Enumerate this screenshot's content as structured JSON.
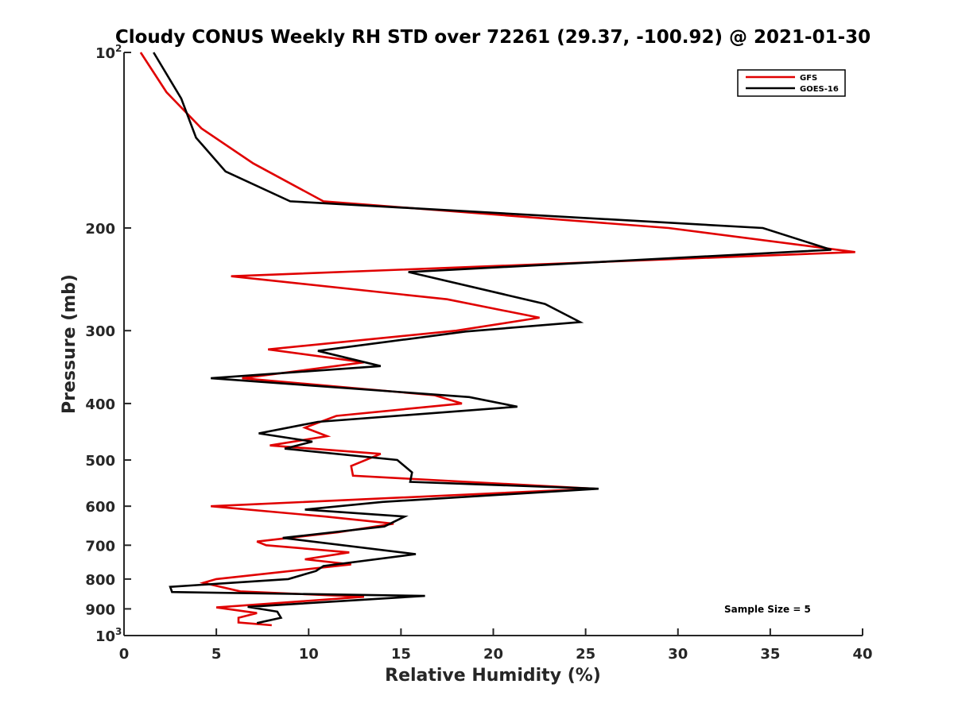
{
  "chart_data": {
    "type": "line",
    "title": "Cloudy CONUS Weekly RH STD over 72261 (29.37, -100.92) @ 2021-01-30",
    "xlabel": "Relative Humidity (%)",
    "ylabel": "Pressure (mb)",
    "xlim": [
      0,
      40
    ],
    "ylim": [
      100,
      1000
    ],
    "y_scale": "log",
    "y_reversed": true,
    "x_ticks": [
      "0",
      "5",
      "10",
      "15",
      "20",
      "25",
      "30",
      "35",
      "40"
    ],
    "y_ticks": [
      {
        "value": 100,
        "base": "10",
        "exp": "2"
      },
      {
        "value": 200,
        "label": "200"
      },
      {
        "value": 300,
        "label": "300"
      },
      {
        "value": 400,
        "label": "400"
      },
      {
        "value": 500,
        "label": "500"
      },
      {
        "value": 600,
        "label": "600"
      },
      {
        "value": 700,
        "label": "700"
      },
      {
        "value": 800,
        "label": "800"
      },
      {
        "value": 900,
        "label": "900"
      },
      {
        "value": 1000,
        "base": "10",
        "exp": "3"
      }
    ],
    "legend_position": "top-right",
    "grid": false,
    "annotation": "Sample Size = 5",
    "series": [
      {
        "name": "GFS",
        "color": "#e00000",
        "points": [
          [
            0.9,
            100
          ],
          [
            2.3,
            117
          ],
          [
            4.2,
            135
          ],
          [
            7.0,
            155
          ],
          [
            10.8,
            180
          ],
          [
            29.5,
            200
          ],
          [
            39.6,
            220
          ],
          [
            5.8,
            242
          ],
          [
            17.5,
            265
          ],
          [
            22.5,
            285
          ],
          [
            18.0,
            300
          ],
          [
            7.8,
            323
          ],
          [
            13.0,
            340
          ],
          [
            6.4,
            362
          ],
          [
            16.8,
            387
          ],
          [
            18.3,
            400
          ],
          [
            11.5,
            420
          ],
          [
            9.8,
            440
          ],
          [
            11.0,
            455
          ],
          [
            7.9,
            472
          ],
          [
            13.9,
            488
          ],
          [
            12.3,
            512
          ],
          [
            12.4,
            532
          ],
          [
            25.5,
            560
          ],
          [
            4.7,
            600
          ],
          [
            10.9,
            625
          ],
          [
            14.6,
            643
          ],
          [
            11.6,
            665
          ],
          [
            7.2,
            690
          ],
          [
            7.7,
            700
          ],
          [
            12.2,
            720
          ],
          [
            9.8,
            740
          ],
          [
            12.3,
            755
          ],
          [
            5.0,
            800
          ],
          [
            4.3,
            812
          ],
          [
            6.3,
            840
          ],
          [
            13.0,
            858
          ],
          [
            5.0,
            895
          ],
          [
            7.2,
            915
          ],
          [
            6.2,
            932
          ],
          [
            6.2,
            950
          ],
          [
            8.0,
            960
          ]
        ]
      },
      {
        "name": "GOES-16",
        "color": "#000000",
        "points": [
          [
            1.6,
            100
          ],
          [
            3.1,
            120
          ],
          [
            3.9,
            140
          ],
          [
            5.5,
            160
          ],
          [
            9.0,
            180
          ],
          [
            34.6,
            200
          ],
          [
            38.3,
            218
          ],
          [
            15.4,
            238
          ],
          [
            22.8,
            270
          ],
          [
            24.7,
            290
          ],
          [
            18.5,
            301
          ],
          [
            10.5,
            325
          ],
          [
            13.9,
            345
          ],
          [
            4.7,
            362
          ],
          [
            18.7,
            390
          ],
          [
            21.3,
            405
          ],
          [
            10.5,
            430
          ],
          [
            7.3,
            450
          ],
          [
            10.2,
            465
          ],
          [
            8.7,
            478
          ],
          [
            14.8,
            500
          ],
          [
            15.6,
            525
          ],
          [
            15.5,
            545
          ],
          [
            25.7,
            560
          ],
          [
            14.0,
            590
          ],
          [
            9.8,
            608
          ],
          [
            15.2,
            625
          ],
          [
            14.1,
            650
          ],
          [
            8.6,
            680
          ],
          [
            15.8,
            725
          ],
          [
            10.8,
            760
          ],
          [
            10.4,
            775
          ],
          [
            8.9,
            800
          ],
          [
            2.5,
            825
          ],
          [
            2.6,
            842
          ],
          [
            16.3,
            855
          ],
          [
            6.7,
            893
          ],
          [
            8.3,
            910
          ],
          [
            8.5,
            932
          ],
          [
            7.2,
            952
          ]
        ]
      }
    ]
  }
}
